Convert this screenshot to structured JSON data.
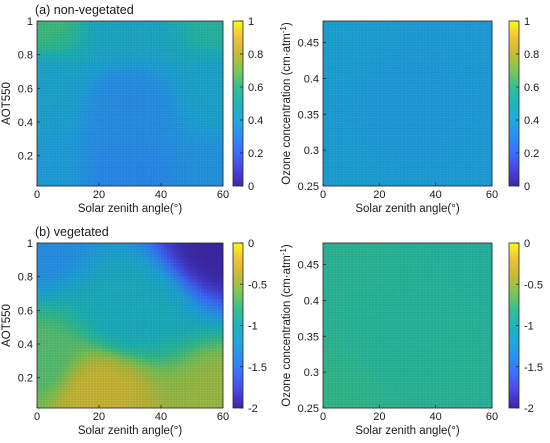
{
  "colormap": [
    "#3e26a8",
    "#4744e0",
    "#3e6cfd",
    "#2c8ef3",
    "#1ea9db",
    "#1db6bb",
    "#34c08f",
    "#7ec655",
    "#c5bb36",
    "#f3bf3b",
    "#f9fb15"
  ],
  "panels": {
    "a": {
      "title": "(a) non-vegetated"
    },
    "b": {
      "title": "(b) vegetated"
    }
  },
  "chart_data": [
    {
      "id": "a-left",
      "type": "heatmap",
      "panel": "a",
      "title": "(a) non-vegetated",
      "xlabel": "Solar zenith angle(°)",
      "ylabel": "AOT550",
      "xlim": [
        0,
        60
      ],
      "ylim": [
        0.02,
        1.0
      ],
      "xticks": [
        "0",
        "20",
        "40",
        "60"
      ],
      "yticks": [
        "0.2",
        "0.4",
        "0.6",
        "0.8",
        "1"
      ],
      "clim": [
        0,
        1
      ],
      "cticks": [
        "0",
        "0.2",
        "0.4",
        "0.6",
        "0.8",
        "1"
      ],
      "sample_values": [
        {
          "x": 0,
          "y": 1.0,
          "v": 0.62
        },
        {
          "x": 30,
          "y": 1.0,
          "v": 0.45
        },
        {
          "x": 60,
          "y": 1.0,
          "v": 0.55
        },
        {
          "x": 0,
          "y": 0.6,
          "v": 0.42
        },
        {
          "x": 30,
          "y": 0.5,
          "v": 0.32
        },
        {
          "x": 60,
          "y": 0.6,
          "v": 0.42
        },
        {
          "x": 0,
          "y": 0.05,
          "v": 0.38
        },
        {
          "x": 30,
          "y": 0.05,
          "v": 0.3
        },
        {
          "x": 60,
          "y": 0.05,
          "v": 0.34
        }
      ]
    },
    {
      "id": "a-right",
      "type": "heatmap",
      "panel": "a",
      "xlabel": "Solar zenith angle(°)",
      "ylabel": "Ozone concentration (cm·atm⁻¹)",
      "xlim": [
        0,
        60
      ],
      "ylim": [
        0.25,
        0.48
      ],
      "xticks": [
        "0",
        "20",
        "40",
        "60"
      ],
      "yticks": [
        "0.25",
        "0.3",
        "0.35",
        "0.4",
        "0.45"
      ],
      "clim": [
        0,
        1
      ],
      "cticks": [
        "0",
        "0.2",
        "0.4",
        "0.6",
        "0.8",
        "1"
      ],
      "sample_values": [
        {
          "x": 0,
          "y": 0.48,
          "v": 0.4
        },
        {
          "x": 60,
          "y": 0.48,
          "v": 0.38
        },
        {
          "x": 30,
          "y": 0.36,
          "v": 0.37
        },
        {
          "x": 0,
          "y": 0.25,
          "v": 0.39
        },
        {
          "x": 60,
          "y": 0.25,
          "v": 0.38
        }
      ]
    },
    {
      "id": "b-left",
      "type": "heatmap",
      "panel": "b",
      "title": "(b) vegetated",
      "xlabel": "Solar zenith angle(°)",
      "ylabel": "AOT550",
      "xlim": [
        0,
        60
      ],
      "ylim": [
        0.02,
        1.0
      ],
      "xticks": [
        "0",
        "20",
        "40",
        "60"
      ],
      "yticks": [
        "0.2",
        "0.4",
        "0.6",
        "0.8",
        "1"
      ],
      "clim": [
        -2,
        0
      ],
      "cticks": [
        "-2",
        "-1.5",
        "-1",
        "-0.5",
        "0"
      ],
      "sample_values": [
        {
          "x": 0,
          "y": 1.0,
          "v": -1.35
        },
        {
          "x": 60,
          "y": 1.0,
          "v": -2.0
        },
        {
          "x": 30,
          "y": 0.6,
          "v": -1.05
        },
        {
          "x": 0,
          "y": 0.3,
          "v": -0.7
        },
        {
          "x": 20,
          "y": 0.1,
          "v": -0.35
        },
        {
          "x": 60,
          "y": 0.05,
          "v": -0.5
        }
      ]
    },
    {
      "id": "b-right",
      "type": "heatmap",
      "panel": "b",
      "xlabel": "Solar zenith angle(°)",
      "ylabel": "Ozone concentration (cm·atm⁻¹)",
      "xlim": [
        0,
        60
      ],
      "ylim": [
        0.25,
        0.48
      ],
      "xticks": [
        "0",
        "20",
        "40",
        "60"
      ],
      "yticks": [
        "0.25",
        "0.3",
        "0.35",
        "0.4",
        "0.45"
      ],
      "clim": [
        -2,
        0
      ],
      "cticks": [
        "-2",
        "-1.5",
        "-1",
        "-0.5",
        "0"
      ],
      "sample_values": [
        {
          "x": 0,
          "y": 0.48,
          "v": -0.85
        },
        {
          "x": 60,
          "y": 0.48,
          "v": -0.9
        },
        {
          "x": 30,
          "y": 0.36,
          "v": -0.88
        },
        {
          "x": 0,
          "y": 0.25,
          "v": -0.8
        },
        {
          "x": 60,
          "y": 0.25,
          "v": -0.86
        }
      ]
    }
  ]
}
